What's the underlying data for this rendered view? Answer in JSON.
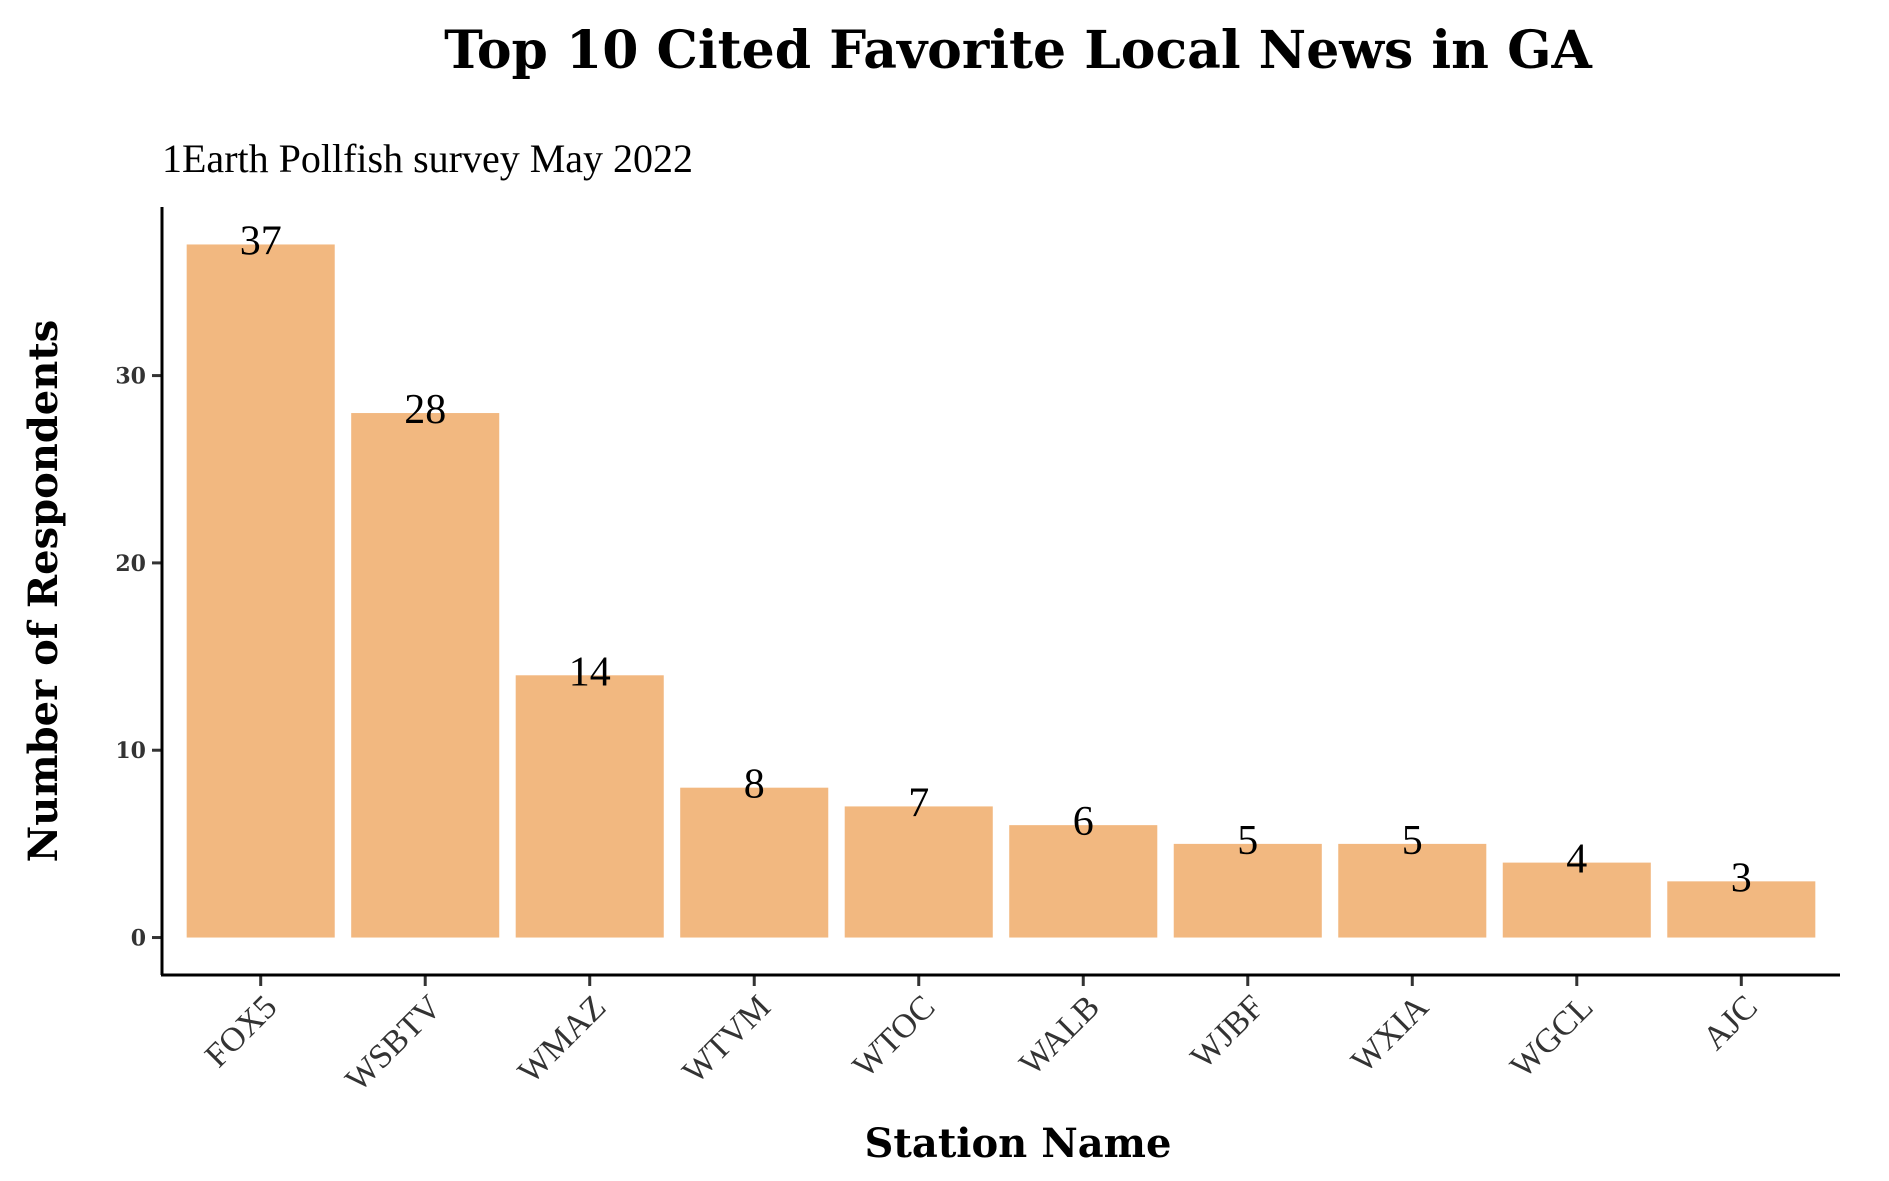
{
  "chart_data": {
    "type": "bar",
    "title": "Top 10 Cited Favorite Local News in GA",
    "subtitle": "1Earth Pollfish survey May 2022",
    "xlabel": "Station Name",
    "ylabel": "Number of Respondents",
    "categories": [
      "FOX5",
      "WSBTV",
      "WMAZ",
      "WTVM",
      "WTOC",
      "WALB",
      "WJBF",
      "WXIA",
      "WGCL",
      "AJC"
    ],
    "values": [
      37,
      28,
      14,
      8,
      7,
      6,
      5,
      5,
      4,
      3
    ],
    "data_labels": [
      "37",
      "28",
      "14",
      "8",
      "7",
      "6",
      "5",
      "5",
      "4",
      "3"
    ],
    "yticks": [
      "0",
      "10",
      "20",
      "30"
    ],
    "ytick_values": [
      0,
      10,
      20,
      30
    ],
    "ylim": [
      -2,
      39
    ],
    "grid": false,
    "legend": "none",
    "bar_color": "#F2B880"
  }
}
